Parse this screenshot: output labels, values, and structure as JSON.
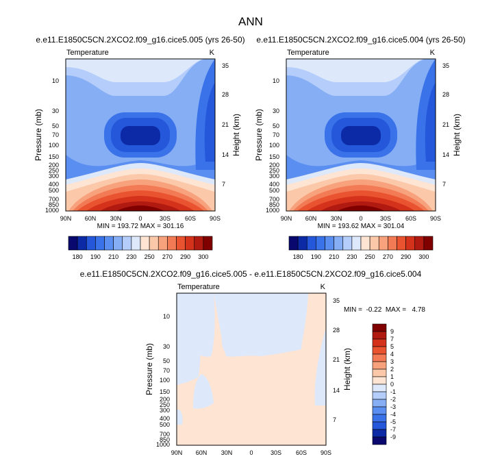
{
  "page_title": "ANN",
  "chart_data": [
    {
      "type": "heatmap",
      "id": "panel1",
      "title": "e.e11.E1850C5CN.2XCO2.f09_g16.cice5.005 (yrs 26-50)",
      "variable": "Temperature",
      "units": "K",
      "xlabel": "",
      "ylabel": "Pressure (mb)",
      "ylabel_right": "Height (km)",
      "x_ticks": [
        "90N",
        "60N",
        "30N",
        "0",
        "30S",
        "60S",
        "90S"
      ],
      "y_ticks": [
        "10",
        "30",
        "50",
        "70",
        "100",
        "150",
        "200",
        "250",
        "300",
        "400",
        "500",
        "700",
        "850",
        "1000"
      ],
      "y_ticks_right": [
        "35",
        "28",
        "21",
        "14",
        "7"
      ],
      "stats": "MIN = 193.72  MAX = 301.16",
      "min": 193.72,
      "max": 301.16
    },
    {
      "type": "heatmap",
      "id": "panel2",
      "title": "e.e11.E1850C5CN.2XCO2.f09_g16.cice5.004 (yrs 26-50)",
      "variable": "Temperature",
      "units": "K",
      "xlabel": "",
      "ylabel": "Pressure (mb)",
      "ylabel_right": "Height (km)",
      "x_ticks": [
        "90N",
        "60N",
        "30N",
        "0",
        "30S",
        "60S",
        "90S"
      ],
      "y_ticks": [
        "10",
        "30",
        "50",
        "70",
        "100",
        "150",
        "200",
        "250",
        "300",
        "400",
        "500",
        "700",
        "850",
        "1000"
      ],
      "y_ticks_right": [
        "35",
        "28",
        "21",
        "14",
        "7"
      ],
      "stats": "MIN = 193.62  MAX = 301.04",
      "min": 193.62,
      "max": 301.04
    },
    {
      "type": "heatmap",
      "id": "panel3",
      "title": "e.e11.E1850C5CN.2XCO2.f09_g16.cice5.005 - e.e11.E1850C5CN.2XCO2.f09_g16.cice5.004",
      "variable": "Temperature",
      "units": "K",
      "xlabel": "",
      "ylabel": "Pressure (mb)",
      "ylabel_right": "Height (km)",
      "x_ticks": [
        "90N",
        "60N",
        "30N",
        "0",
        "30S",
        "60S",
        "90S"
      ],
      "y_ticks": [
        "10",
        "30",
        "50",
        "70",
        "100",
        "150",
        "200",
        "250",
        "300",
        "400",
        "500",
        "700",
        "850",
        "1000"
      ],
      "y_ticks_right": [
        "35",
        "28",
        "21",
        "14",
        "7"
      ],
      "stats": "MIN =  -0.22  MAX =   4.78",
      "min": -0.22,
      "max": 4.78
    }
  ],
  "colorbar_top": {
    "labels": [
      "180",
      "190",
      "210",
      "230",
      "250",
      "270",
      "290",
      "300"
    ],
    "colors": [
      "#08086e",
      "#0c2aa6",
      "#2457d9",
      "#3a72ea",
      "#5a8ef0",
      "#86aef4",
      "#b4cdfa",
      "#dde8fb",
      "#fde4d3",
      "#fbc8a9",
      "#f7a27c",
      "#f27a55",
      "#e9532f",
      "#d4321b",
      "#b11a10",
      "#800000"
    ]
  },
  "colorbar_diff": {
    "labels": [
      "9",
      "7",
      "5",
      "4",
      "3",
      "2",
      "1",
      "0",
      "-1",
      "-2",
      "-3",
      "-4",
      "-5",
      "-7",
      "-9"
    ],
    "colors": [
      "#800000",
      "#b11a10",
      "#d4321b",
      "#e9532f",
      "#f27a55",
      "#f7a27c",
      "#fbc8a9",
      "#fde4d3",
      "#dde8fb",
      "#b4cdfa",
      "#86aef4",
      "#5a8ef0",
      "#3a72ea",
      "#2457d9",
      "#0c2aa6",
      "#08086e"
    ]
  }
}
